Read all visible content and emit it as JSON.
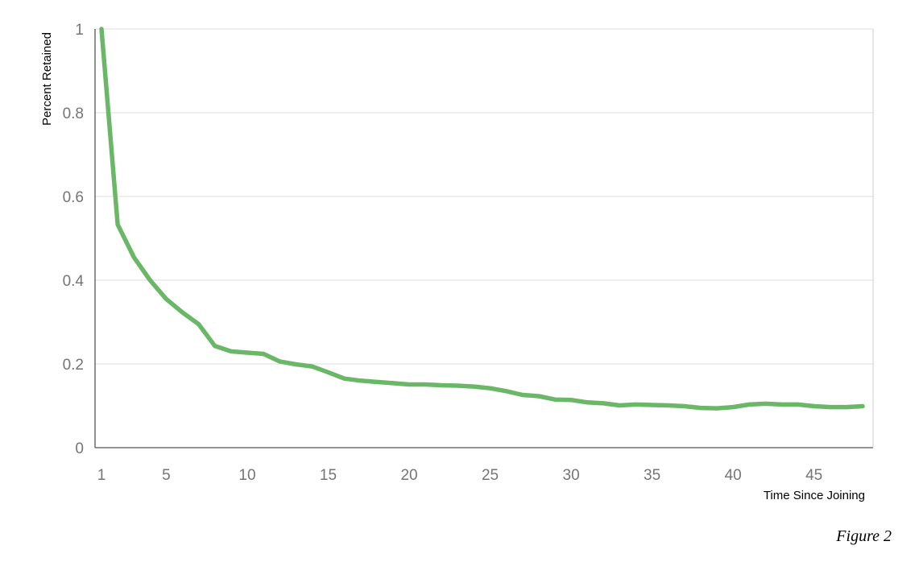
{
  "caption": "Figure 2",
  "chart_data": {
    "type": "line",
    "title": "",
    "xlabel": "Time Since Joining",
    "ylabel": "Percent Retained",
    "xlim": [
      1,
      48
    ],
    "ylim": [
      0,
      1
    ],
    "x_ticks": [
      1,
      5,
      10,
      15,
      20,
      25,
      30,
      35,
      40,
      45
    ],
    "y_ticks": [
      0,
      0.2,
      0.4,
      0.6,
      0.8,
      1
    ],
    "y_tick_labels": [
      "0",
      "0.2",
      "0.4",
      "0.6",
      "0.8",
      "1"
    ],
    "grid": "horizontal",
    "line_color": "#6ab768",
    "series": [
      {
        "x": [
          1,
          2,
          3,
          4,
          5,
          6,
          7,
          8,
          9,
          10,
          11,
          12,
          13,
          14,
          15,
          16,
          17,
          18,
          19,
          20,
          21,
          22,
          23,
          24,
          25,
          26,
          27,
          28,
          29,
          30,
          31,
          32,
          33,
          34,
          35,
          36,
          37,
          38,
          39,
          40,
          41,
          42,
          43,
          44,
          45,
          46,
          47,
          48
        ],
        "values": [
          1.0,
          0.533,
          0.455,
          0.4,
          0.355,
          0.323,
          0.295,
          0.243,
          0.23,
          0.227,
          0.224,
          0.206,
          0.199,
          0.194,
          0.18,
          0.165,
          0.16,
          0.157,
          0.154,
          0.151,
          0.151,
          0.149,
          0.148,
          0.146,
          0.142,
          0.135,
          0.126,
          0.123,
          0.115,
          0.114,
          0.108,
          0.106,
          0.101,
          0.103,
          0.102,
          0.101,
          0.099,
          0.095,
          0.094,
          0.097,
          0.103,
          0.105,
          0.103,
          0.103,
          0.099,
          0.097,
          0.097,
          0.099
        ]
      }
    ]
  }
}
